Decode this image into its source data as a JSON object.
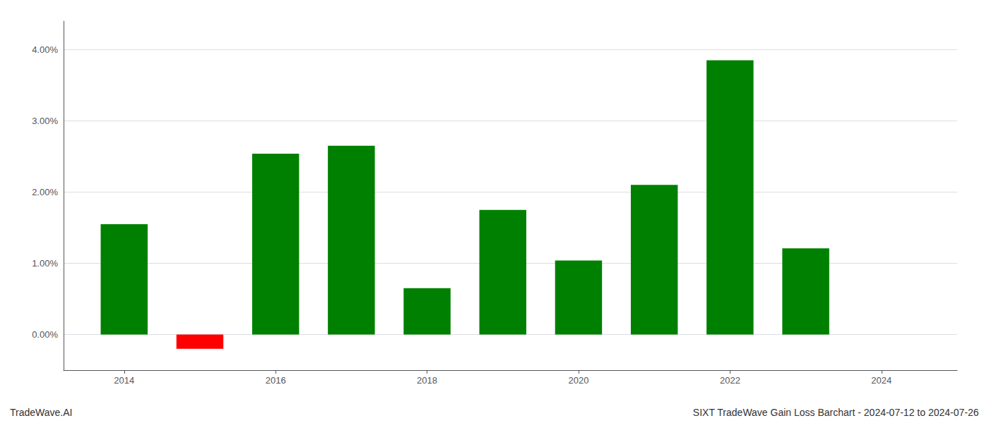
{
  "chart_data": {
    "type": "bar",
    "x": [
      2014,
      2015,
      2016,
      2017,
      2018,
      2019,
      2020,
      2021,
      2022,
      2023
    ],
    "values": [
      0.0155,
      -0.002,
      0.0254,
      0.0265,
      0.0065,
      0.0175,
      0.0104,
      0.021,
      0.0385,
      0.0121
    ],
    "colors": [
      "#008000",
      "#ff0000",
      "#008000",
      "#008000",
      "#008000",
      "#008000",
      "#008000",
      "#008000",
      "#008000",
      "#008000"
    ],
    "annotations": [
      "TradeWave.AI",
      "SIXT TradeWave Gain Loss Barchart - 2024-07-12 to 2024-07-26"
    ],
    "xlim": [
      2013.2,
      2025.0
    ],
    "xticks": [
      2014,
      2016,
      2018,
      2020,
      2022,
      2024
    ],
    "ylim": [
      -0.005,
      0.044
    ],
    "yticks": [
      {
        "value": 0.0,
        "label": "0.00%"
      },
      {
        "value": 0.01,
        "label": "1.00%"
      },
      {
        "value": 0.02,
        "label": "2.00%"
      },
      {
        "value": 0.03,
        "label": "3.00%"
      },
      {
        "value": 0.04,
        "label": "4.00%"
      }
    ],
    "grid": true
  }
}
